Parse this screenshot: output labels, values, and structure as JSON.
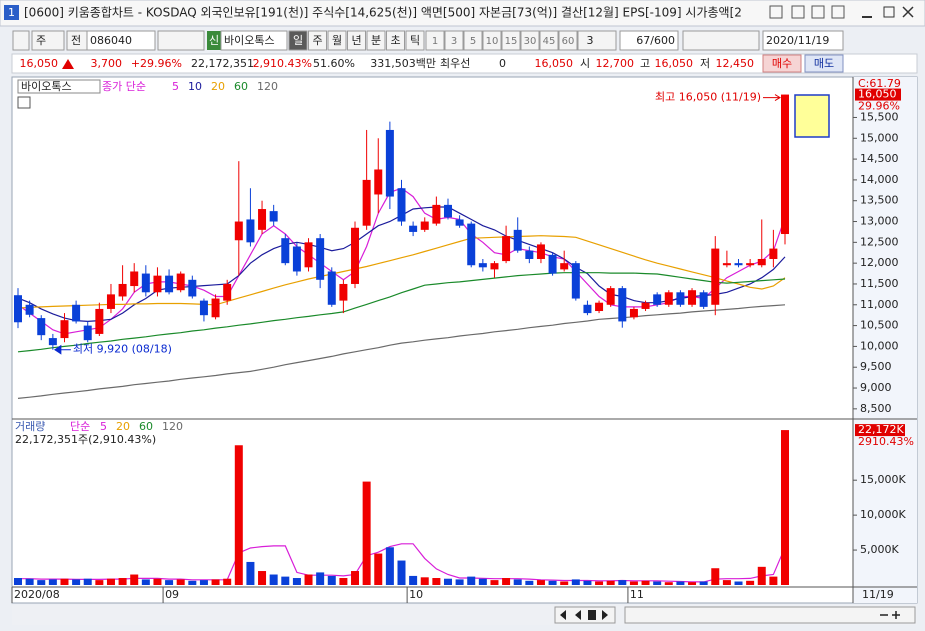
{
  "window": {
    "number": "1",
    "title": "[0600] 키움종합차트 - KOSDAQ 외국인보유[191(천)] 주식수[14,625(천)] 액면[500] 자본금[73(억)] 결산[12월] EPS[-109] 시가총액[2"
  },
  "toolbar": {
    "period": "주",
    "mode": "전",
    "code": "086040",
    "name_tag": "신",
    "name": "바이오톡스",
    "periods": [
      "일",
      "주",
      "월",
      "년",
      "분",
      "초",
      "틱"
    ],
    "intervals": [
      "1",
      "3",
      "5",
      "10",
      "15",
      "30",
      "45",
      "60"
    ],
    "interval_select": "3",
    "count": "67/600",
    "date": "2020/11/19"
  },
  "quote": {
    "price": "16,050",
    "change": "3,700",
    "change_pct": "+29.96%",
    "volume": "22,172,351",
    "volume_pct": "2,910.43%",
    "ratio": "51.60%",
    "amount": "331,503백만",
    "best_label": "최우선",
    "best_value": "0",
    "best_price": "16,050",
    "open_label": "시",
    "open": "12,700",
    "high_label": "고",
    "high": "16,050",
    "low_label": "저",
    "low": "12,450",
    "buy": "매수",
    "sell": "매도"
  },
  "chart_data": {
    "type": "candlestick",
    "name": "바이오톡스",
    "ma_title": "종가 단순",
    "categories": [
      "2020/08",
      null,
      null,
      null,
      null,
      null,
      null,
      null,
      null,
      null,
      null,
      null,
      null,
      "09",
      null,
      null,
      null,
      null,
      null,
      null,
      null,
      null,
      null,
      null,
      null,
      null,
      null,
      null,
      null,
      null,
      null,
      null,
      null,
      null,
      "10",
      null,
      null,
      null,
      null,
      null,
      null,
      null,
      null,
      null,
      null,
      null,
      null,
      null,
      null,
      null,
      null,
      null,
      null,
      "11",
      null,
      null,
      null,
      null,
      null,
      null,
      null,
      null,
      null,
      null,
      null,
      null,
      null
    ],
    "cursor_date": "11/19",
    "up_color": "#f00000",
    "down_color": "#0a40d8",
    "open": [
      11230,
      11000,
      10680,
      10200,
      10200,
      11000,
      10500,
      10300,
      10900,
      11200,
      11450,
      11750,
      11300,
      11700,
      11350,
      11600,
      11100,
      10700,
      11100,
      12550,
      13050,
      12800,
      13250,
      12600,
      12400,
      11900,
      12600,
      11800,
      11100,
      11500,
      12900,
      13650,
      15200,
      13800,
      12900,
      12800,
      12950,
      13400,
      13050,
      12950,
      12000,
      11850,
      12050,
      12800,
      12300,
      12100,
      12200,
      11850,
      12000,
      11000,
      10850,
      11000,
      11400,
      10700,
      10900,
      11250,
      11000,
      11300,
      11000,
      11300,
      11000,
      11950,
      12000,
      11950,
      11950,
      12100,
      12700
    ],
    "high": [
      11400,
      11100,
      10750,
      10300,
      10800,
      11100,
      10600,
      11050,
      11500,
      11950,
      12000,
      11950,
      11900,
      11850,
      11800,
      11700,
      11150,
      11250,
      11600,
      14450,
      13800,
      13500,
      13400,
      12700,
      12500,
      12600,
      12700,
      11900,
      11600,
      13000,
      15200,
      15000,
      15400,
      14000,
      13000,
      13100,
      13600,
      13550,
      13150,
      13000,
      12100,
      12050,
      12900,
      13100,
      12400,
      12500,
      12250,
      12300,
      12050,
      11100,
      11100,
      11450,
      11450,
      10950,
      11100,
      11300,
      11350,
      11350,
      11400,
      11350,
      12650,
      12300,
      12100,
      12100,
      13050,
      12800,
      16050
    ],
    "low": [
      10440,
      10700,
      10150,
      9920,
      10100,
      10550,
      10100,
      10250,
      10800,
      11100,
      11300,
      11200,
      11200,
      11250,
      11300,
      11150,
      10600,
      10650,
      11000,
      11700,
      12400,
      12700,
      12900,
      11950,
      11700,
      11800,
      11400,
      10950,
      10800,
      11400,
      12800,
      13200,
      13300,
      12900,
      12650,
      12750,
      12900,
      13050,
      12850,
      11900,
      11800,
      11650,
      12000,
      12250,
      12000,
      12000,
      11700,
      11800,
      11100,
      10750,
      10800,
      10950,
      10450,
      10650,
      10850,
      10950,
      10950,
      10950,
      10950,
      10900,
      10750,
      11900,
      11900,
      11900,
      11900,
      11900,
      12450
    ],
    "close": [
      10580,
      10760,
      10270,
      10030,
      10630,
      10600,
      10150,
      10900,
      11250,
      11500,
      11800,
      11300,
      11700,
      11300,
      11750,
      11200,
      10750,
      11150,
      11500,
      13000,
      12500,
      13300,
      13000,
      12000,
      11800,
      12500,
      11600,
      11000,
      11500,
      12850,
      14000,
      14250,
      13600,
      13000,
      12750,
      13000,
      13400,
      13100,
      12900,
      11950,
      11900,
      12000,
      12650,
      12300,
      12100,
      12450,
      11750,
      12000,
      11150,
      10800,
      11050,
      11400,
      10600,
      10900,
      11050,
      11000,
      11300,
      11000,
      11350,
      10950,
      12350,
      12000,
      11950,
      12000,
      12100,
      12350,
      16050
    ],
    "volume": [
      1000,
      900,
      700,
      800,
      900,
      800,
      900,
      700,
      900,
      1000,
      1500,
      800,
      900,
      700,
      800,
      600,
      700,
      800,
      900,
      20000,
      3300,
      2000,
      1500,
      1200,
      1000,
      1500,
      1800,
      1300,
      1000,
      2000,
      14800,
      4500,
      5400,
      3500,
      1300,
      1100,
      1000,
      900,
      800,
      1200,
      900,
      700,
      1000,
      800,
      600,
      700,
      600,
      500,
      800,
      600,
      500,
      600,
      700,
      500,
      600,
      500,
      400,
      500,
      400,
      500,
      2400,
      700,
      500,
      600,
      2600,
      1200,
      22172
    ],
    "ma_series": [
      {
        "name": "5",
        "color": "#d81ed8",
        "values": [
          11000,
          10800,
          10600,
          10400,
          10300,
          10350,
          10400,
          10450,
          10650,
          10900,
          11300,
          11500,
          11550,
          11550,
          11500,
          11450,
          11350,
          11200,
          11200,
          11700,
          12200,
          12700,
          12900,
          12700,
          12400,
          12200,
          12000,
          11800,
          11600,
          11800,
          12400,
          13200,
          13700,
          13800,
          13600,
          13200,
          13050,
          13100,
          13050,
          12700,
          12500,
          12250,
          12200,
          12350,
          12300,
          12250,
          12150,
          12100,
          11800,
          11500,
          11200,
          11000,
          10950,
          10950,
          10950,
          11000,
          11050,
          11200,
          11200,
          11150,
          11400,
          11650,
          11800,
          11950,
          12050,
          12300,
          13100
        ]
      },
      {
        "name": "10",
        "color": "#1c1c9c",
        "values": [
          11160,
          11050,
          10900,
          10780,
          10680,
          10620,
          10600,
          10620,
          10650,
          10800,
          11000,
          11150,
          11350,
          11400,
          11420,
          11440,
          11460,
          11480,
          11500,
          11700,
          12000,
          12200,
          12350,
          12450,
          12500,
          12450,
          12380,
          12300,
          12350,
          12500,
          12700,
          12900,
          13000,
          13150,
          13300,
          13330,
          13350,
          13350,
          13200,
          13050,
          12900,
          12800,
          12650,
          12550,
          12450,
          12350,
          12250,
          12100,
          11900,
          11750,
          11450,
          11250,
          11200,
          11100,
          11050,
          11050,
          11100,
          11150,
          11200,
          11220,
          11250,
          11300,
          11400,
          11500,
          11650,
          11850,
          12150
        ]
      },
      {
        "name": "20",
        "color": "#e8a000",
        "values": [
          10920,
          10940,
          10950,
          10960,
          10970,
          10980,
          10990,
          11000,
          11010,
          11010,
          11020,
          11020,
          11030,
          11030,
          11030,
          11020,
          11010,
          11000,
          11080,
          11160,
          11240,
          11320,
          11400,
          11480,
          11550,
          11620,
          11680,
          11740,
          11800,
          11860,
          11920,
          11990,
          12060,
          12130,
          12200,
          12280,
          12360,
          12440,
          12520,
          12600,
          12610,
          12620,
          12630,
          12640,
          12650,
          12660,
          12650,
          12640,
          12620,
          12530,
          12440,
          12350,
          12260,
          12170,
          12080,
          12000,
          11930,
          11860,
          11790,
          11720,
          11650,
          11570,
          11500,
          11420,
          11380,
          11450,
          11650
        ]
      },
      {
        "name": "60",
        "color": "#1a8a2a",
        "values": [
          9870,
          9900,
          9930,
          9970,
          10000,
          10030,
          10070,
          10100,
          10130,
          10170,
          10200,
          10230,
          10270,
          10300,
          10330,
          10370,
          10400,
          10440,
          10470,
          10510,
          10540,
          10580,
          10620,
          10650,
          10690,
          10720,
          10760,
          10790,
          10830,
          10920,
          11010,
          11100,
          11190,
          11290,
          11380,
          11470,
          11500,
          11530,
          11550,
          11580,
          11610,
          11640,
          11670,
          11700,
          11720,
          11740,
          11760,
          11770,
          11770,
          11770,
          11770,
          11760,
          11760,
          11760,
          11750,
          11740,
          11700,
          11660,
          11620,
          11580,
          11540,
          11520,
          11540,
          11560,
          11580,
          11600,
          11620
        ]
      },
      {
        "name": "120",
        "color": "#6a6a6a",
        "values": [
          8750,
          8780,
          8810,
          8850,
          8880,
          8910,
          8940,
          8980,
          9010,
          9040,
          9080,
          9110,
          9140,
          9170,
          9210,
          9240,
          9270,
          9300,
          9340,
          9370,
          9400,
          9450,
          9500,
          9560,
          9610,
          9660,
          9710,
          9760,
          9820,
          9870,
          9920,
          9970,
          10030,
          10080,
          10110,
          10150,
          10180,
          10210,
          10250,
          10280,
          10310,
          10350,
          10380,
          10410,
          10450,
          10480,
          10510,
          10550,
          10580,
          10610,
          10650,
          10670,
          10690,
          10710,
          10740,
          10760,
          10780,
          10800,
          10830,
          10850,
          10870,
          10890,
          10910,
          10940,
          10960,
          10980,
          11000
        ]
      }
    ],
    "ylim": [
      8280,
      16400
    ],
    "yticks": [
      {
        "value": 8500,
        "label": "8,500"
      },
      {
        "value": 9000,
        "label": "9,000"
      },
      {
        "value": 9500,
        "label": "9,500"
      },
      {
        "value": 10000,
        "label": "10,000"
      },
      {
        "value": 10500,
        "label": "10,500"
      },
      {
        "value": 11000,
        "label": "11,000"
      },
      {
        "value": 11500,
        "label": "11,500"
      },
      {
        "value": 12000,
        "label": "12,000"
      },
      {
        "value": 12500,
        "label": "12,500"
      },
      {
        "value": 13000,
        "label": "13,000"
      },
      {
        "value": 13500,
        "label": "13,500"
      },
      {
        "value": 14000,
        "label": "14,000"
      },
      {
        "value": 14500,
        "label": "14,500"
      },
      {
        "value": 15000,
        "label": "15,000"
      },
      {
        "value": 15500,
        "label": "15,500"
      }
    ],
    "cursor_label": "C:61.79",
    "last_close_label": "16,050",
    "last_change_label": "29.96%",
    "high_annotation": "최고 16,050 (11/19)",
    "low_annotation": "최저 9,920 (08/18)",
    "volume_title": "거래량",
    "volume_ma_title": "단순",
    "volume_info": "22,172,351주(2,910.43%)",
    "volume_ma_series": [
      {
        "name": "5",
        "color": "#d81ed8",
        "values": [
          900,
          900,
          850,
          850,
          850,
          800,
          800,
          800,
          850,
          850,
          950,
          950,
          950,
          850,
          850,
          750,
          750,
          750,
          750,
          4600,
          5300,
          5500,
          5600,
          5600,
          1800,
          1400,
          1400,
          1400,
          1300,
          1500,
          4200,
          4700,
          5500,
          5900,
          5900,
          3800,
          2300,
          1500,
          1000,
          1000,
          950,
          900,
          900,
          900,
          850,
          750,
          700,
          650,
          650,
          650,
          600,
          600,
          650,
          600,
          600,
          600,
          550,
          500,
          450,
          450,
          850,
          900,
          900,
          950,
          1300,
          1500,
          5400
        ]
      }
    ],
    "volume_legend_extra": [
      {
        "name": "20",
        "color": "#e8a000"
      },
      {
        "name": "60",
        "color": "#1a8a2a"
      },
      {
        "name": "120",
        "color": "#6a6a6a"
      }
    ],
    "volume_ylim": [
      0,
      22900
    ],
    "volume_yticks": [
      {
        "value": 5000,
        "label": "5,000K"
      },
      {
        "value": 10000,
        "label": "10,000K"
      },
      {
        "value": 15000,
        "label": "15,000K"
      }
    ],
    "last_volume_label": "22,172K",
    "last_volume_pct_label": "2910.43%",
    "grid": false
  }
}
